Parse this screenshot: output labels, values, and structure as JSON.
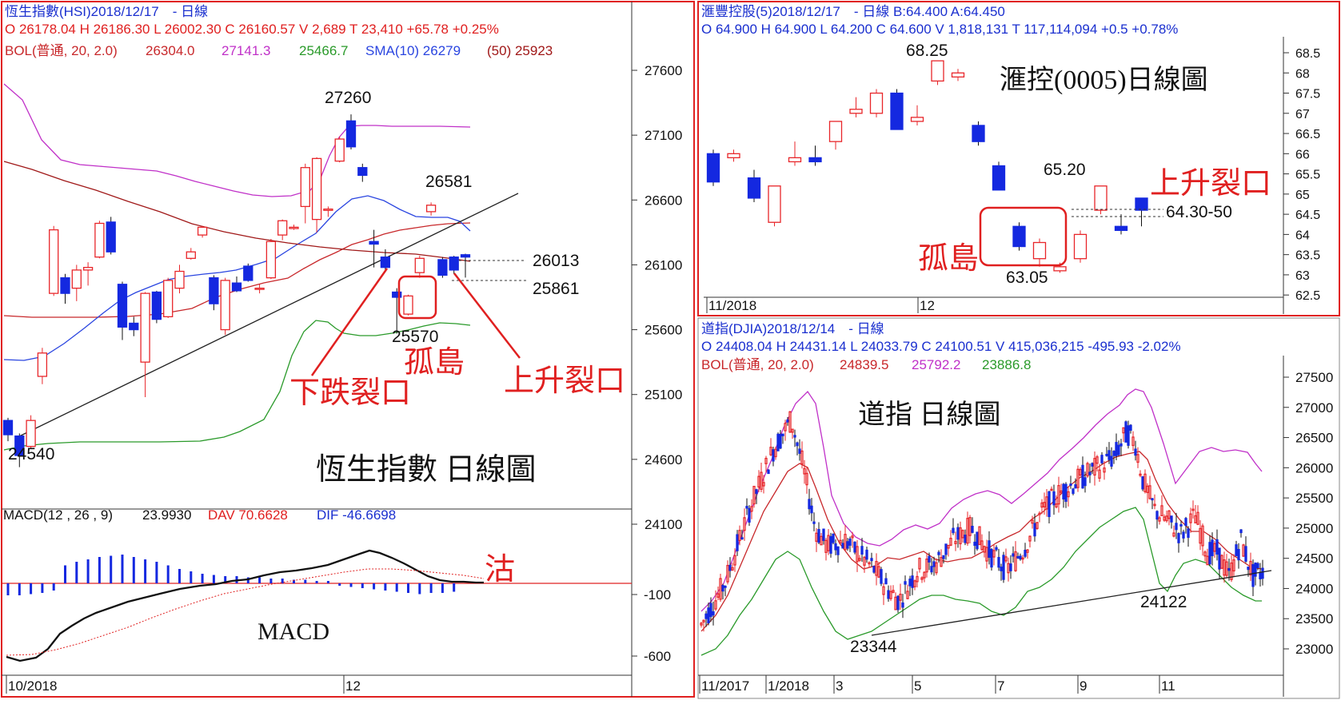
{
  "panels": {
    "hsi": {
      "header1": "恆生指數(HSI)2018/12/17　- 日線",
      "header2": "O 26178.04 H 26186.30 L 26002.30 C 26160.57 V 2,689 T 23,410 +65.78 +0.25%",
      "bol_label": "BOL(普通, 20, 2.0)",
      "bol_mid": "26304.0",
      "bol_up": "27141.3",
      "bol_low": "25466.7",
      "sma10": "SMA(10) 26279",
      "sma50": "(50) 25923",
      "title": "恆生指數 日線圖",
      "ann_down_gap": "下跌裂口",
      "ann_island": "孤島",
      "ann_up_gap": "上升裂口",
      "x_labels": [
        "10/2018",
        "12"
      ],
      "macd_header": "MACD(12 , 26 , 9)",
      "macd_val": "23.9930",
      "dav": "DAV 70.6628",
      "dif": "DIF -46.6698",
      "macd_title": "MACD",
      "macd_note": "沽",
      "macd_ticks": [
        "-100",
        "-600"
      ]
    },
    "hsbc": {
      "header1": "滙豐控股(5)2018/12/17　- 日線 B:64.400 A:64.450",
      "header2": "O 64.900 H 64.900 L 64.200 C 64.600 V 1,818,131 T 117,114,094 +0.5 +0.78%",
      "title": "滙控(0005)日線圖",
      "ann_island": "孤島",
      "ann_up_gap": "上升裂口",
      "x_labels": [
        "11/2018",
        "12"
      ]
    },
    "dji": {
      "header1": "道指(DJIA)2018/12/14　- 日線",
      "header2": "O 24408.04 H 24431.14 L 24033.79 C 24100.51 V 415,036,215 -495.93 -2.02%",
      "bol_label": "BOL(普通, 20, 2.0)",
      "bol_mid": "24839.5",
      "bol_up": "25792.2",
      "bol_low": "23886.8",
      "title": "道指 日線圖",
      "x_labels": [
        "11/2017",
        "1/2018",
        "3",
        "5",
        "7",
        "9",
        "11"
      ]
    }
  },
  "colors": {
    "up": "#e8262a",
    "down": "#1428e0",
    "bol_mid": "#c8282b",
    "bol_up": "#c030c8",
    "bol_low": "#2a9a2a",
    "sma10": "#2a45e0",
    "sma50": "#a01818",
    "header_blue": "#1a2fcf",
    "annotation_red": "#e02020",
    "trendline": "#222222"
  },
  "chart_data": [
    {
      "type": "candlestick",
      "name_ref": "hsi",
      "y_ticks": [
        27600,
        27100,
        26600,
        26100,
        25600,
        25100,
        24600,
        24100
      ],
      "ylim": [
        23950,
        27900
      ],
      "candles": [
        [
          24900,
          24920,
          24740,
          24790
        ],
        [
          24780,
          24800,
          24540,
          24630
        ],
        [
          24700,
          24940,
          24680,
          24900
        ],
        [
          25240,
          25460,
          25180,
          25420
        ],
        [
          25880,
          26400,
          25860,
          26370
        ],
        [
          26000,
          26030,
          25800,
          25880
        ],
        [
          25920,
          26100,
          25820,
          26060
        ],
        [
          26060,
          26120,
          25940,
          26080
        ],
        [
          26160,
          26440,
          26150,
          26420
        ],
        [
          26430,
          26470,
          26180,
          26200
        ],
        [
          25950,
          25970,
          25520,
          25620
        ],
        [
          25650,
          25700,
          25550,
          25600
        ],
        [
          25350,
          25890,
          25080,
          25880
        ],
        [
          25890,
          25900,
          25650,
          25680
        ],
        [
          25700,
          26000,
          25690,
          25980
        ],
        [
          25920,
          26100,
          25880,
          26050
        ],
        [
          26150,
          26230,
          26140,
          26200
        ],
        [
          26330,
          26400,
          26310,
          26390
        ],
        [
          26000,
          26020,
          25750,
          25800
        ],
        [
          25600,
          26000,
          25560,
          25980
        ],
        [
          25960,
          26010,
          25890,
          25900
        ],
        [
          26090,
          26110,
          25970,
          25980
        ],
        [
          25920,
          25950,
          25880,
          25920
        ],
        [
          26000,
          26300,
          25990,
          26280
        ],
        [
          26330,
          26450,
          26290,
          26440
        ],
        [
          26380,
          26410,
          26370,
          26390
        ],
        [
          26550,
          26880,
          26420,
          26850
        ],
        [
          26450,
          26930,
          26350,
          26920
        ],
        [
          26520,
          26550,
          26470,
          26530
        ],
        [
          26900,
          27090,
          26890,
          27070
        ],
        [
          27210,
          27260,
          26990,
          27010
        ],
        [
          26850,
          26880,
          26740,
          26790
        ],
        [
          26280,
          26370,
          26080,
          26260
        ],
        [
          26160,
          26220,
          26060,
          26080
        ],
        [
          25890,
          25920,
          25570,
          25850
        ],
        [
          25720,
          25870,
          25710,
          25860
        ],
        [
          26040,
          26170,
          26000,
          26150
        ],
        [
          26510,
          26581,
          26480,
          26560
        ],
        [
          26140,
          26160,
          26000,
          26020
        ],
        [
          26160,
          26170,
          26030,
          26060
        ],
        [
          26178,
          26186,
          26002,
          26160
        ]
      ],
      "labels": {
        "high": "27260",
        "peak2": "26581",
        "level1": "26013",
        "level2": "25861",
        "island_low": "25570",
        "low": "24540"
      }
    },
    {
      "type": "candlestick",
      "name_ref": "hsbc",
      "y_ticks": [
        68.5,
        68.0,
        67.5,
        67.0,
        66.5,
        66.0,
        65.5,
        65.0,
        64.5,
        64.0,
        63.5,
        63.0,
        62.5
      ],
      "ylim": [
        62.2,
        68.9
      ],
      "labels": {
        "high": "68.25",
        "recent_high": "65.20",
        "island_low": "63.05",
        "gap_zone": "64.30-50"
      }
    },
    {
      "type": "candlestick",
      "name_ref": "dji",
      "y_ticks": [
        27500,
        27000,
        26500,
        26000,
        25500,
        25000,
        24500,
        24000,
        23500,
        23000
      ],
      "ylim": [
        22850,
        27800
      ],
      "labels": {
        "low1": "23344",
        "low2": "24122"
      }
    }
  ]
}
